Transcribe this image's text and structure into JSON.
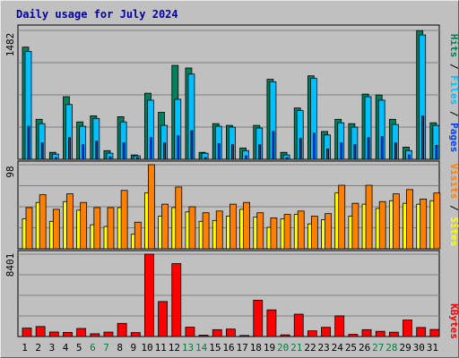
{
  "title": "Daily usage for July 2024",
  "colors": {
    "background": "#c0c0c0",
    "plot_bg": "#c0c0c0",
    "grid": "#808080",
    "weekday_label": "#000000",
    "weekend_label": "#008040",
    "hits": "#00805c",
    "files": "#00c0ff",
    "pages": "#0040ff",
    "visits": "#ff8000",
    "sites": "#ffff00",
    "kbytes": "#ff0000",
    "slash": "#000000"
  },
  "chart_data": [
    {
      "type": "bar",
      "panel": "hits_files_pages",
      "categories": [
        "1",
        "2",
        "3",
        "4",
        "5",
        "6",
        "7",
        "8",
        "9",
        "10",
        "11",
        "12",
        "13",
        "14",
        "15",
        "16",
        "17",
        "18",
        "19",
        "20",
        "21",
        "22",
        "23",
        "24",
        "25",
        "26",
        "27",
        "28",
        "29",
        "30",
        "31"
      ],
      "weekend_days": [
        "6",
        "7",
        "13",
        "14",
        "20",
        "21",
        "27",
        "28"
      ],
      "y_max_label": "1482",
      "ylim": [
        0,
        1482
      ],
      "legend": [
        {
          "name": "Hits",
          "color": "#00805c"
        },
        {
          "name": "Files",
          "color": "#00c0ff"
        },
        {
          "name": "Pages",
          "color": "#0040ff"
        }
      ],
      "series": [
        {
          "name": "Hits",
          "values": [
            1290,
            460,
            80,
            720,
            430,
            500,
            100,
            490,
            50,
            760,
            540,
            1080,
            1050,
            80,
            410,
            390,
            130,
            390,
            920,
            80,
            590,
            960,
            320,
            460,
            410,
            750,
            740,
            460,
            140,
            1480,
            420
          ]
        },
        {
          "name": "Files",
          "values": [
            1240,
            410,
            60,
            630,
            380,
            470,
            70,
            430,
            40,
            680,
            390,
            690,
            980,
            70,
            380,
            370,
            100,
            360,
            890,
            50,
            560,
            930,
            280,
            420,
            370,
            720,
            680,
            400,
            100,
            1430,
            390
          ]
        },
        {
          "name": "Pages",
          "values": [
            380,
            190,
            20,
            250,
            170,
            210,
            30,
            190,
            20,
            250,
            190,
            270,
            330,
            20,
            180,
            170,
            40,
            170,
            320,
            20,
            240,
            300,
            120,
            190,
            170,
            250,
            260,
            190,
            50,
            500,
            160
          ]
        }
      ]
    },
    {
      "type": "bar",
      "panel": "visits_sites",
      "categories": [
        "1",
        "2",
        "3",
        "4",
        "5",
        "6",
        "7",
        "8",
        "9",
        "10",
        "11",
        "12",
        "13",
        "14",
        "15",
        "16",
        "17",
        "18",
        "19",
        "20",
        "21",
        "22",
        "23",
        "24",
        "25",
        "26",
        "27",
        "28",
        "29",
        "30",
        "31"
      ],
      "y_max_label": "98",
      "ylim": [
        0,
        98
      ],
      "legend": [
        {
          "name": "Visits",
          "color": "#ff8000"
        },
        {
          "name": "Sites",
          "color": "#ffff00"
        }
      ],
      "series": [
        {
          "name": "Visits",
          "values": [
            48,
            63,
            46,
            64,
            54,
            48,
            48,
            68,
            31,
            98,
            52,
            72,
            49,
            42,
            44,
            52,
            54,
            42,
            36,
            40,
            44,
            38,
            41,
            74,
            53,
            74,
            55,
            64,
            69,
            58,
            65
          ]
        },
        {
          "name": "Sites",
          "values": [
            35,
            54,
            32,
            55,
            45,
            28,
            26,
            48,
            17,
            65,
            38,
            48,
            43,
            32,
            33,
            38,
            46,
            37,
            25,
            35,
            40,
            29,
            34,
            65,
            38,
            52,
            47,
            56,
            53,
            52,
            56
          ]
        }
      ]
    },
    {
      "type": "bar",
      "panel": "kbytes",
      "categories": [
        "1",
        "2",
        "3",
        "4",
        "5",
        "6",
        "7",
        "8",
        "9",
        "10",
        "11",
        "12",
        "13",
        "14",
        "15",
        "16",
        "17",
        "18",
        "19",
        "20",
        "21",
        "22",
        "23",
        "24",
        "25",
        "26",
        "27",
        "28",
        "29",
        "30",
        "31"
      ],
      "y_max_label": "8401",
      "ylim": [
        0,
        8401
      ],
      "legend": [
        {
          "name": "KBytes",
          "color": "#ff0000"
        }
      ],
      "series": [
        {
          "name": "KBytes",
          "values": [
            860,
            1020,
            460,
            420,
            820,
            280,
            450,
            1340,
            400,
            8400,
            3570,
            7440,
            950,
            140,
            700,
            760,
            110,
            3700,
            2720,
            170,
            2280,
            580,
            940,
            2110,
            220,
            700,
            530,
            440,
            1680,
            920,
            720
          ]
        }
      ]
    }
  ]
}
